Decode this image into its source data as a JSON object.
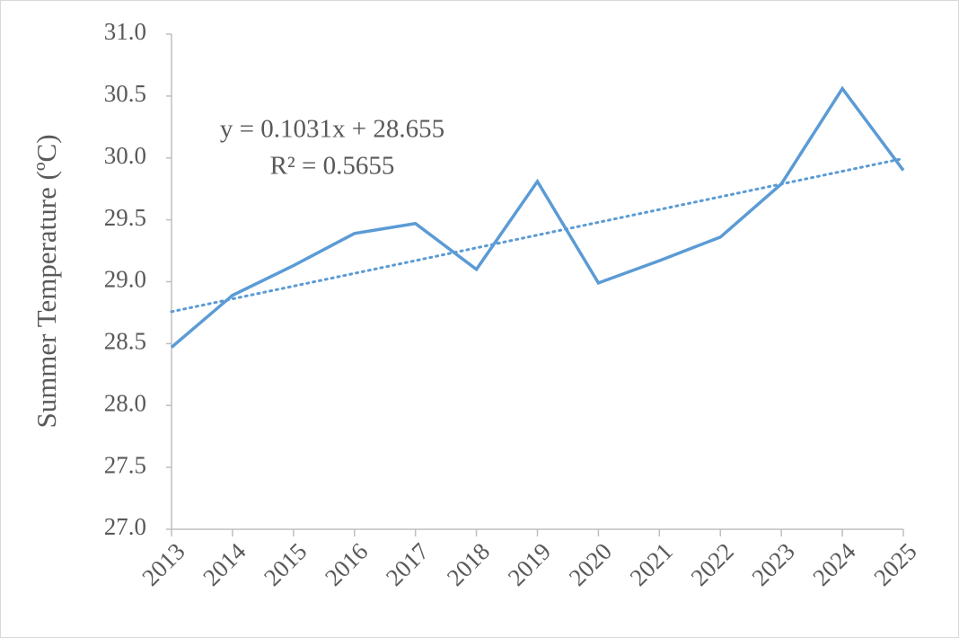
{
  "chart_data": {
    "type": "line",
    "y_label": "Summer Temperature  (ºC)",
    "categories": [
      "2013",
      "2014",
      "2015",
      "2016",
      "2017",
      "2018",
      "2019",
      "2020",
      "2021",
      "2022",
      "2023",
      "2024",
      "2025"
    ],
    "series": [
      {
        "color": "#5b9bd5",
        "values": [
          28.47,
          28.89,
          29.13,
          29.39,
          29.47,
          29.1,
          29.81,
          28.99,
          29.17,
          29.36,
          29.79,
          30.56,
          29.9
        ]
      }
    ],
    "trendline": {
      "slope": 0.1031,
      "intercept": 28.655,
      "equation": "y = 0.1031x + 28.655",
      "r_squared": "R² = 0.5655"
    },
    "ylim": [
      27,
      31
    ],
    "yticks": [
      {
        "value": 27,
        "label": "27.0"
      },
      27.5,
      {
        "value": 28,
        "label": "28.0"
      },
      28.5,
      {
        "value": 29,
        "label": "29.0"
      },
      29.5,
      {
        "value": 30,
        "label": "30.0"
      },
      30.5,
      {
        "value": 31,
        "label": "31.0"
      }
    ]
  }
}
